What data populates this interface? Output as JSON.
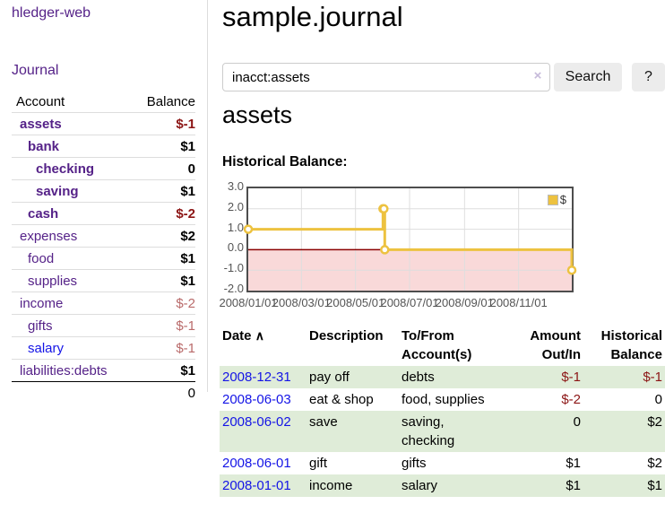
{
  "app": {
    "title": "hledger-web"
  },
  "sidebar": {
    "journal_link": "Journal",
    "accounts_table": {
      "headers": {
        "account": "Account",
        "balance": "Balance"
      },
      "rows": [
        {
          "label": "assets",
          "balance": "$-1",
          "depth": 1,
          "emph": true,
          "balance_tone": "neg-strong",
          "link_tone": "purple"
        },
        {
          "label": "bank",
          "balance": "$1",
          "depth": 2,
          "emph": true,
          "balance_tone": "pos",
          "link_tone": "purple"
        },
        {
          "label": "checking",
          "balance": "0",
          "depth": 3,
          "emph": true,
          "balance_tone": "pos",
          "link_tone": "purple"
        },
        {
          "label": "saving",
          "balance": "$1",
          "depth": 3,
          "emph": true,
          "balance_tone": "pos",
          "link_tone": "purple"
        },
        {
          "label": "cash",
          "balance": "$-2",
          "depth": 2,
          "emph": true,
          "balance_tone": "neg-strong",
          "link_tone": "purple"
        },
        {
          "label": "expenses",
          "balance": "$2",
          "depth": 1,
          "emph": false,
          "balance_tone": "pos",
          "link_tone": "purple"
        },
        {
          "label": "food",
          "balance": "$1",
          "depth": 2,
          "emph": false,
          "balance_tone": "pos",
          "link_tone": "purple"
        },
        {
          "label": "supplies",
          "balance": "$1",
          "depth": 2,
          "emph": false,
          "balance_tone": "pos",
          "link_tone": "purple"
        },
        {
          "label": "income",
          "balance": "$-2",
          "depth": 1,
          "emph": false,
          "balance_tone": "neg-soft",
          "link_tone": "purple"
        },
        {
          "label": "gifts",
          "balance": "$-1",
          "depth": 2,
          "emph": false,
          "balance_tone": "neg-soft",
          "link_tone": "purple"
        },
        {
          "label": "salary",
          "balance": "$-1",
          "depth": 2,
          "emph": false,
          "balance_tone": "neg-soft",
          "link_tone": "blue"
        },
        {
          "label": "liabilities:debts",
          "balance": "$1",
          "depth": 1,
          "emph": false,
          "balance_tone": "pos",
          "link_tone": "purple"
        }
      ],
      "total": "0"
    }
  },
  "main": {
    "title": "sample.journal",
    "search": {
      "value": "inacct:assets",
      "clear_icon": "×",
      "search_button": "Search",
      "help_button": "?"
    },
    "account_heading": "assets",
    "chart_title": "Historical Balance:",
    "register": {
      "headers": {
        "date": "Date",
        "sort_icon": "∧",
        "description": "Description",
        "accounts": "To/From\nAccount(s)",
        "amount": "Amount\nOut/In",
        "balance": "Historical\nBalance"
      },
      "rows": [
        {
          "date": "2008-12-31",
          "description": "pay off",
          "accounts": "debts",
          "amount": "$-1",
          "amount_tone": "neg",
          "balance": "$-1",
          "balance_tone": "neg",
          "shaded": true
        },
        {
          "date": "2008-06-03",
          "description": "eat & shop",
          "accounts": "food, supplies",
          "amount": "$-2",
          "amount_tone": "neg",
          "balance": "0",
          "balance_tone": "pos",
          "shaded": false
        },
        {
          "date": "2008-06-02",
          "description": "save",
          "accounts": "saving,\nchecking",
          "amount": "0",
          "amount_tone": "pos",
          "balance": "$2",
          "balance_tone": "pos",
          "shaded": true
        },
        {
          "date": "2008-06-01",
          "description": "gift",
          "accounts": "gifts",
          "amount": "$1",
          "amount_tone": "pos",
          "balance": "$2",
          "balance_tone": "pos",
          "shaded": false
        },
        {
          "date": "2008-01-01",
          "description": "income",
          "accounts": "salary",
          "amount": "$1",
          "amount_tone": "pos",
          "balance": "$1",
          "balance_tone": "pos",
          "shaded": true
        }
      ]
    }
  },
  "colors": {
    "purple": "#552288",
    "blue": "#1414e6",
    "neg_strong": "#8c1515",
    "neg_soft": "#b96a6a",
    "row_green": "#dfecd8",
    "chart_yellow": "#edc240",
    "chart_pink": "#f9d9d9",
    "chart_zero": "#8b0000",
    "grid": "#dedede",
    "axis_text": "#545454",
    "chart_border": "#4d4d4d",
    "btn_bg": "#ececec"
  },
  "chart_data": {
    "type": "line",
    "mode": "steps",
    "title": "Historical Balance:",
    "series": [
      {
        "name": "$",
        "color": "#edc240",
        "points": [
          [
            "2008-01-01",
            1
          ],
          [
            "2008-06-01",
            2
          ],
          [
            "2008-06-02",
            2
          ],
          [
            "2008-06-03",
            0
          ],
          [
            "2008-12-31",
            -1
          ]
        ]
      }
    ],
    "xlim": [
      "2008-01-01",
      "2008-12-31"
    ],
    "ylim": [
      -2,
      3
    ],
    "yticks": [
      3,
      2,
      1,
      0,
      -1,
      -2
    ],
    "ytick_labels": [
      "3.0",
      "2.0",
      "1.0",
      "0.0",
      "-1.0",
      "-2.0"
    ],
    "xticks": [
      "2008-01-01",
      "2008-03-01",
      "2008-05-01",
      "2008-07-01",
      "2008-09-01",
      "2008-11-01"
    ],
    "xtick_labels": [
      "2008/01/01",
      "2008/03/01",
      "2008/05/01",
      "2008/07/01",
      "2008/09/01",
      "2008/11/01"
    ],
    "grid": true,
    "negative_region_fill": "#f9d9d9",
    "zero_line_color": "#8b0000",
    "legend": {
      "label": "$",
      "position": "top-right"
    }
  }
}
